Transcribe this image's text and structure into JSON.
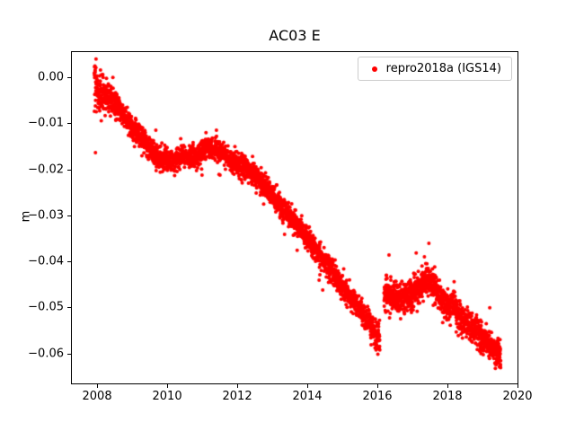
{
  "chart_data": {
    "type": "scatter",
    "title": "AC03 E",
    "xlabel": "",
    "ylabel": "m",
    "grid": false,
    "legend_position": "upper right",
    "xlim": [
      2007.28,
      2020.0
    ],
    "ylim": [
      -0.0665,
      0.0055
    ],
    "x_ticks": [
      {
        "value": 2008,
        "label": "2008"
      },
      {
        "value": 2010,
        "label": "2010"
      },
      {
        "value": 2012,
        "label": "2012"
      },
      {
        "value": 2014,
        "label": "2014"
      },
      {
        "value": 2016,
        "label": "2016"
      },
      {
        "value": 2018,
        "label": "2018"
      },
      {
        "value": 2020,
        "label": "2020"
      }
    ],
    "y_ticks": [
      {
        "value": 0.0,
        "label": "0.00"
      },
      {
        "value": -0.01,
        "label": "−0.01"
      },
      {
        "value": -0.02,
        "label": "−0.02"
      },
      {
        "value": -0.03,
        "label": "−0.03"
      },
      {
        "value": -0.04,
        "label": "−0.04"
      },
      {
        "value": -0.05,
        "label": "−0.05"
      },
      {
        "value": -0.06,
        "label": "−0.06"
      }
    ],
    "series": [
      {
        "name": "repro2018a (IGS14)",
        "color": "#ff0000",
        "marker": "dot",
        "marker_radius_px": 2,
        "seed": 42,
        "points_start": 2007.92,
        "points_end": 2019.52,
        "points_count": 4200,
        "gaps": [
          [
            2016.07,
            2016.19
          ]
        ],
        "trend_anchors": [
          [
            2007.92,
            -0.0015
          ],
          [
            2008.05,
            -0.003
          ],
          [
            2008.3,
            -0.0045
          ],
          [
            2008.55,
            -0.006
          ],
          [
            2008.8,
            -0.0085
          ],
          [
            2009.0,
            -0.011
          ],
          [
            2009.25,
            -0.013
          ],
          [
            2009.5,
            -0.0155
          ],
          [
            2009.75,
            -0.0175
          ],
          [
            2010.0,
            -0.018
          ],
          [
            2010.2,
            -0.0185
          ],
          [
            2010.45,
            -0.017
          ],
          [
            2010.7,
            -0.0175
          ],
          [
            2010.95,
            -0.0165
          ],
          [
            2011.15,
            -0.015
          ],
          [
            2011.4,
            -0.0155
          ],
          [
            2011.65,
            -0.017
          ],
          [
            2011.9,
            -0.0185
          ],
          [
            2012.1,
            -0.019
          ],
          [
            2012.35,
            -0.0205
          ],
          [
            2012.6,
            -0.022
          ],
          [
            2012.9,
            -0.0245
          ],
          [
            2013.2,
            -0.0275
          ],
          [
            2013.5,
            -0.03
          ],
          [
            2013.8,
            -0.033
          ],
          [
            2014.1,
            -0.036
          ],
          [
            2014.4,
            -0.039
          ],
          [
            2014.7,
            -0.042
          ],
          [
            2015.0,
            -0.0455
          ],
          [
            2015.3,
            -0.0485
          ],
          [
            2015.6,
            -0.0515
          ],
          [
            2015.85,
            -0.0545
          ],
          [
            2016.06,
            -0.057
          ],
          [
            2016.2,
            -0.047
          ],
          [
            2016.45,
            -0.0475
          ],
          [
            2016.7,
            -0.048
          ],
          [
            2016.95,
            -0.047
          ],
          [
            2017.2,
            -0.0455
          ],
          [
            2017.45,
            -0.0435
          ],
          [
            2017.65,
            -0.0455
          ],
          [
            2017.85,
            -0.0485
          ],
          [
            2018.05,
            -0.05
          ],
          [
            2018.2,
            -0.049
          ],
          [
            2018.35,
            -0.0525
          ],
          [
            2018.6,
            -0.054
          ],
          [
            2018.85,
            -0.0555
          ],
          [
            2019.1,
            -0.0575
          ],
          [
            2019.3,
            -0.0585
          ],
          [
            2019.52,
            -0.0605
          ]
        ],
        "noise_sigma_anchors": [
          [
            2007.92,
            0.0032
          ],
          [
            2008.1,
            0.0022
          ],
          [
            2008.4,
            0.0014
          ],
          [
            2009.0,
            0.0012
          ],
          [
            2015.5,
            0.0012
          ],
          [
            2016.2,
            0.0017
          ],
          [
            2017.8,
            0.0016
          ],
          [
            2018.3,
            0.0015
          ],
          [
            2019.52,
            0.0014
          ]
        ]
      }
    ]
  }
}
